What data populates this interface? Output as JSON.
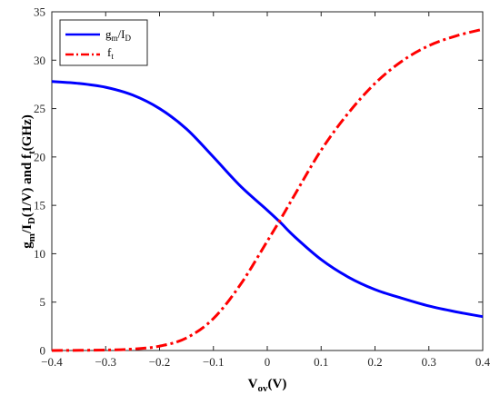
{
  "chart_data": {
    "type": "line",
    "xlim": [
      -0.4,
      0.4
    ],
    "ylim": [
      0,
      35
    ],
    "xticks": [
      -0.4,
      -0.3,
      -0.2,
      -0.1,
      0,
      0.1,
      0.2,
      0.3,
      0.4
    ],
    "yticks": [
      0,
      5,
      10,
      15,
      20,
      25,
      30,
      35
    ],
    "xtick_labels": [
      "−0.4",
      "−0.3",
      "−0.2",
      "−0.1",
      "0",
      "0.1",
      "0.2",
      "0.3",
      "0.4"
    ],
    "ytick_labels": [
      "0",
      "5",
      "10",
      "15",
      "20",
      "25",
      "30",
      "35"
    ],
    "xlabel": {
      "main": "V",
      "sub": "ov",
      "rest": "(V)"
    },
    "ylabel": {
      "p1": "g",
      "s1": "m",
      "p2": "/I",
      "s2": "D",
      "p3": "(1/V) and f",
      "s3": "t",
      "p4": "(GHz)"
    },
    "legend_position": "top-left",
    "grid": false,
    "series": [
      {
        "name": "gm/ID",
        "legend_main": "g",
        "legend_sub1": "m",
        "legend_mid": "/I",
        "legend_sub2": "D",
        "color": "#0000ff",
        "style": "solid",
        "x": [
          -0.4,
          -0.35,
          -0.3,
          -0.25,
          -0.2,
          -0.15,
          -0.1,
          -0.05,
          0,
          0.025,
          0.05,
          0.1,
          0.15,
          0.2,
          0.25,
          0.3,
          0.35,
          0.4
        ],
        "y": [
          27.8,
          27.6,
          27.2,
          26.4,
          25.0,
          22.9,
          20.0,
          17.0,
          14.5,
          13.2,
          11.8,
          9.4,
          7.6,
          6.3,
          5.4,
          4.6,
          4.0,
          3.5
        ]
      },
      {
        "name": "ft",
        "legend_main": "f",
        "legend_sub1": "t",
        "color": "#ff0000",
        "style": "dashdot",
        "x": [
          -0.4,
          -0.3,
          -0.25,
          -0.2,
          -0.15,
          -0.1,
          -0.05,
          0,
          0.025,
          0.05,
          0.1,
          0.15,
          0.2,
          0.25,
          0.3,
          0.35,
          0.4
        ],
        "y": [
          0,
          0.05,
          0.15,
          0.45,
          1.3,
          3.3,
          6.8,
          11.3,
          13.6,
          16.0,
          20.7,
          24.5,
          27.6,
          29.9,
          31.5,
          32.5,
          33.2
        ]
      }
    ]
  }
}
